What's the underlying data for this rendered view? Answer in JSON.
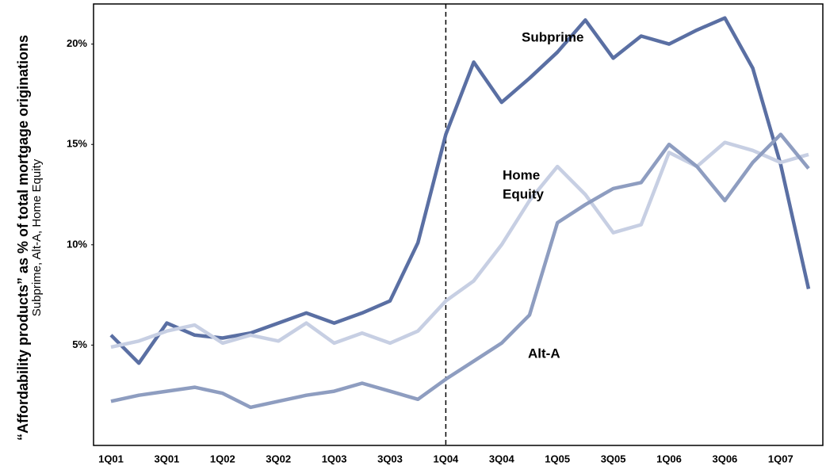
{
  "chart_data": {
    "type": "line",
    "y_axis_title": "“Affordability products” as % of total mortgage originations",
    "y_axis_subtitle": "Subprime, Alt-A, Home Equity",
    "categories": [
      "1Q01",
      null,
      "3Q01",
      null,
      "1Q02",
      null,
      "3Q02",
      null,
      "1Q03",
      null,
      "3Q03",
      null,
      "1Q04",
      null,
      "3Q04",
      null,
      "1Q05",
      null,
      "3Q05",
      null,
      "1Q06",
      null,
      "3Q06",
      null,
      "1Q07",
      null
    ],
    "reference_line": "1Q04",
    "series": [
      {
        "name": "Subprime",
        "label_lines": [
          "Subprime"
        ],
        "color": "#5a6fa3",
        "values": [
          5.5,
          4.1,
          6.1,
          5.5,
          5.35,
          5.6,
          6.1,
          6.6,
          6.1,
          6.6,
          7.2,
          10.1,
          15.5,
          19.1,
          17.1,
          18.3,
          19.6,
          21.2,
          19.3,
          20.4,
          20.0,
          20.7,
          21.3,
          18.8,
          14.0,
          7.8
        ]
      },
      {
        "name": "Home Equity",
        "label_lines": [
          "Home",
          "Equity"
        ],
        "color": "#c7cfe3",
        "values": [
          4.9,
          5.2,
          5.7,
          6.0,
          5.1,
          5.5,
          5.2,
          6.1,
          5.1,
          5.6,
          5.1,
          5.7,
          7.2,
          8.2,
          10.0,
          12.2,
          13.9,
          12.5,
          10.6,
          11.0,
          14.6,
          13.9,
          15.1,
          14.7,
          14.1,
          14.5
        ]
      },
      {
        "name": "Alt-A",
        "label_lines": [
          "Alt-A"
        ],
        "color": "#8e9dc0",
        "values": [
          2.2,
          2.5,
          2.7,
          2.9,
          2.6,
          1.9,
          2.2,
          2.5,
          2.7,
          3.1,
          2.7,
          2.3,
          3.3,
          4.2,
          5.1,
          6.5,
          11.1,
          12.0,
          12.8,
          13.1,
          15.0,
          13.9,
          12.2,
          14.1,
          15.5,
          13.8
        ]
      }
    ],
    "ylim": [
      0,
      22
    ],
    "yticks": [
      {
        "value": 5,
        "label": "5%"
      },
      {
        "value": 10,
        "label": "10%"
      },
      {
        "value": 15,
        "label": "15%"
      },
      {
        "value": 20,
        "label": "20%"
      }
    ]
  }
}
